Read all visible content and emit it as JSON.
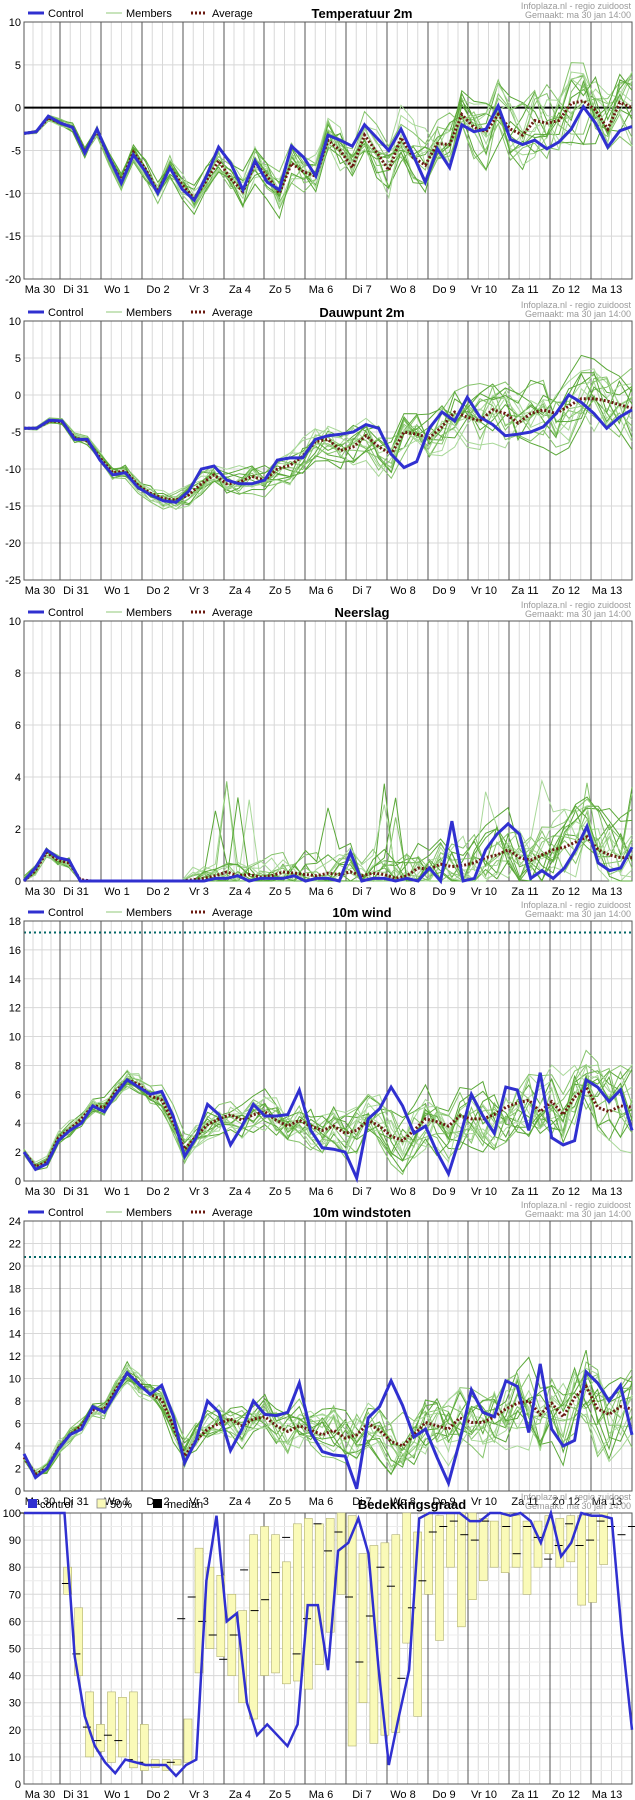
{
  "header": {
    "source": "Infoplaza.nl - regio zuidoost",
    "made": "Gemaakt: ma 30 jan 14:00"
  },
  "days": [
    "Ma 30",
    "Di 31",
    "Wo 1",
    "Do 2",
    "Vr 3",
    "Za 4",
    "Zo 5",
    "Ma 6",
    "Di 7",
    "Wo 8",
    "Do 9",
    "Vr 10",
    "Za 11",
    "Zo 12",
    "Ma 13"
  ],
  "legend": {
    "control": "Control",
    "members": "Members",
    "average": "Average"
  },
  "legend_cloud": {
    "control": "control",
    "p50": "50%",
    "median": "median"
  },
  "colors": {
    "control": "#3030d0",
    "members": "#60b040",
    "average": "#6a1a10",
    "band": "#fafab8",
    "threshold": "#006666"
  },
  "chart_data": [
    {
      "type": "line",
      "title": "Temperatuur 2m",
      "ylim": [
        -20,
        10
      ],
      "yticks": [
        -20,
        -15,
        -10,
        -5,
        0,
        5,
        10
      ],
      "zero_line": true,
      "series": [
        {
          "name": "Control",
          "values": [
            -3,
            -2.8,
            -1,
            -1.8,
            -2.3,
            -5.3,
            -2.5,
            -5.8,
            -8.8,
            -5.5,
            -7.5,
            -10,
            -7,
            -9.5,
            -10.8,
            -8,
            -4.6,
            -6.5,
            -9.6,
            -6.2,
            -8.7,
            -9.6,
            -4.5,
            -5.8,
            -8,
            -3.2,
            -3.8,
            -4.5,
            -2,
            -3.5,
            -5,
            -2.5,
            -5.5,
            -8.7,
            -4.8,
            -7,
            -2,
            -2.8,
            -2.5,
            0.2,
            -3.7,
            -4.3,
            -3.8,
            -4.8,
            -4,
            -2.5,
            0.1,
            -1.8,
            -4.6,
            -2.7,
            -2.2
          ]
        },
        {
          "name": "Average",
          "values": [
            -3,
            -2.8,
            -1.2,
            -1.8,
            -2.3,
            -5.2,
            -2.7,
            -5.8,
            -8.6,
            -5.2,
            -7.2,
            -9.8,
            -7,
            -9,
            -10.6,
            -8.5,
            -6.2,
            -8.3,
            -9.8,
            -6.5,
            -8,
            -10,
            -6.5,
            -7.5,
            -8,
            -3.8,
            -5,
            -7,
            -3.2,
            -5.2,
            -7.3,
            -3.5,
            -5.8,
            -6.7,
            -4.2,
            -4.3,
            -0.8,
            -2.3,
            -2.8,
            -0.8,
            -2.5,
            -3.2,
            -1.5,
            -1.8,
            -1.5,
            0.5,
            0.8,
            -0.3,
            -2.5,
            0.6,
            0
          ]
        }
      ]
    },
    {
      "type": "line",
      "title": "Dauwpunt 2m",
      "ylim": [
        -25,
        10
      ],
      "yticks": [
        -25,
        -20,
        -15,
        -10,
        -5,
        0,
        5,
        10
      ],
      "series": [
        {
          "name": "Control",
          "values": [
            -4.5,
            -4.5,
            -3.4,
            -3.5,
            -6,
            -6,
            -8.8,
            -10.8,
            -10.5,
            -12.5,
            -13.5,
            -14.3,
            -14.5,
            -13,
            -10,
            -9.6,
            -11.5,
            -12,
            -12,
            -11.5,
            -8.8,
            -8.5,
            -8.5,
            -6,
            -5.5,
            -5.3,
            -5,
            -4,
            -4.5,
            -8,
            -9.8,
            -9,
            -4.5,
            -2.3,
            -3.5,
            -0.3,
            -3,
            -4,
            -5.5,
            -5.3,
            -5,
            -4.3,
            -2.5,
            0,
            -1,
            -2.5,
            -4.5,
            -3,
            -2
          ]
        },
        {
          "name": "Average",
          "values": [
            -4.5,
            -4.5,
            -3.5,
            -3.6,
            -5.8,
            -6.2,
            -8.5,
            -10.5,
            -10.3,
            -12.2,
            -13.3,
            -14,
            -14.2,
            -13.5,
            -12,
            -10.8,
            -12,
            -11.8,
            -11,
            -11.5,
            -10,
            -9.5,
            -8.3,
            -6.3,
            -6,
            -7.5,
            -7,
            -5.5,
            -7,
            -8,
            -5,
            -5.3,
            -5.8,
            -4.3,
            -2.3,
            -3,
            -3.5,
            -2,
            -2.5,
            -3.8,
            -2.5,
            -2,
            -2.5,
            -1.5,
            -0.5,
            -0.5,
            -0.8,
            -1.3,
            -1.8
          ]
        }
      ]
    },
    {
      "type": "line",
      "title": "Neerslag",
      "ylim": [
        0,
        10
      ],
      "yticks": [
        0,
        2,
        4,
        6,
        8,
        10
      ],
      "series": [
        {
          "name": "Control",
          "values": [
            0,
            0.5,
            1.2,
            0.9,
            0.8,
            0,
            0,
            0,
            0,
            0,
            0,
            0,
            0,
            0,
            0,
            0,
            0,
            0.1,
            0.1,
            0.2,
            0,
            0.1,
            0.1,
            0.1,
            0.2,
            0,
            0.1,
            0.1,
            0,
            1.1,
            0,
            0.1,
            0.1,
            0,
            0.1,
            0,
            0.5,
            0,
            2.3,
            0,
            0.1,
            1.2,
            1.8,
            2.2,
            1.8,
            0.1,
            0.4,
            0.1,
            0.5,
            1.2,
            2.1,
            0.7,
            0.4,
            0.5,
            1.3
          ]
        },
        {
          "name": "Average",
          "values": [
            0,
            0.4,
            1.1,
            0.8,
            0.7,
            0.05,
            0,
            0,
            0,
            0,
            0,
            0,
            0,
            0,
            0,
            0.05,
            0.1,
            0.2,
            0.35,
            0.2,
            0.25,
            0.15,
            0.2,
            0.35,
            0.3,
            0.25,
            0.2,
            0.3,
            0.25,
            0.35,
            0.2,
            0.3,
            0.25,
            0.1,
            0.2,
            0.5,
            0.45,
            0.65,
            0.55,
            0.6,
            0.7,
            0.9,
            1,
            1.2,
            0.9,
            0.8,
            1,
            1.2,
            1.3,
            1.5,
            1.7,
            1.2,
            1,
            0.9,
            0.9
          ]
        }
      ]
    },
    {
      "type": "line",
      "title": "10m wind",
      "ylim": [
        0,
        18
      ],
      "yticks": [
        0,
        2,
        4,
        6,
        8,
        10,
        12,
        14,
        16,
        18
      ],
      "threshold": 17.2,
      "series": [
        {
          "name": "Control",
          "values": [
            2,
            0.8,
            1.2,
            2.8,
            3.5,
            4,
            5.2,
            4.8,
            6,
            7,
            6.5,
            6,
            6.2,
            4.5,
            1.7,
            3,
            5.3,
            4.6,
            2.5,
            3.8,
            5.3,
            4.5,
            4.5,
            4.6,
            6.3,
            3.5,
            2.3,
            2.2,
            2,
            0.2,
            4.3,
            5,
            6.5,
            5.2,
            3.3,
            3.8,
            2,
            0.5,
            3,
            6,
            4.5,
            3.3,
            6.5,
            6.3,
            3.5,
            7.5,
            3,
            2.5,
            2.8,
            7,
            6.5,
            5.5,
            6.3,
            3.5
          ]
        },
        {
          "name": "Average",
          "values": [
            2,
            1,
            1.3,
            3,
            3.6,
            4.3,
            5.2,
            5.1,
            6.2,
            7,
            6.7,
            5.9,
            5.6,
            4.1,
            2.2,
            3.1,
            3.9,
            4.3,
            4.6,
            4.2,
            4.6,
            4.8,
            4.2,
            3.8,
            4.2,
            3.8,
            3.5,
            3.8,
            3.3,
            3.5,
            4.2,
            3.8,
            3.1,
            2.8,
            3.5,
            4.3,
            4.1,
            3.8,
            4.5,
            4.3,
            4.3,
            4.6,
            5.1,
            5.4,
            5.6,
            4.8,
            5.5,
            4.6,
            5.8,
            6.5,
            5.1,
            4.8,
            5.2,
            5.1
          ]
        }
      ]
    },
    {
      "type": "line",
      "title": "10m windstoten",
      "ylim": [
        0,
        24
      ],
      "yticks": [
        0,
        2,
        4,
        6,
        8,
        10,
        12,
        14,
        16,
        18,
        20,
        22,
        24
      ],
      "threshold": 20.8,
      "series": [
        {
          "name": "Control",
          "values": [
            3.3,
            1.2,
            2,
            3.7,
            5,
            5.5,
            7.5,
            7,
            8.7,
            10.5,
            9.5,
            8.6,
            9.4,
            6.7,
            2.5,
            4.5,
            8,
            7,
            3.6,
            5.5,
            8,
            6.8,
            6.7,
            7,
            9.6,
            5.2,
            3.5,
            3.2,
            3.1,
            0.2,
            6.5,
            7.5,
            9.8,
            7.6,
            4.8,
            5.5,
            3,
            0.7,
            4.5,
            9,
            7,
            6.6,
            9.8,
            9.3,
            5.2,
            11.3,
            5.5,
            4,
            4.5,
            10.6,
            9.6,
            8,
            9.4,
            5
          ]
        },
        {
          "name": "Average",
          "values": [
            3,
            1.5,
            2,
            3.8,
            5,
            5.8,
            7.2,
            7.3,
            9,
            10.5,
            9.6,
            8.6,
            8.1,
            5.8,
            3.1,
            4.5,
            5.5,
            6,
            6.4,
            5.8,
            6.4,
            6.6,
            5.8,
            5.3,
            5.8,
            5.4,
            5,
            5.4,
            4.7,
            5,
            6,
            5.4,
            4.4,
            4,
            5,
            6.1,
            5.8,
            5.5,
            6.5,
            6.1,
            6.1,
            6.6,
            7.3,
            7.8,
            8,
            6.8,
            7.8,
            6.6,
            8.3,
            9.3,
            7.3,
            6.8,
            7.5,
            7.3
          ]
        }
      ]
    },
    {
      "type": "line",
      "title": "Bedekkingsgraad",
      "ylim": [
        0,
        100
      ],
      "yticks": [
        0,
        10,
        20,
        30,
        40,
        50,
        60,
        70,
        80,
        90,
        100
      ],
      "series": [
        {
          "name": "control",
          "values": [
            100,
            100,
            100,
            100,
            100,
            47,
            25,
            14,
            8,
            4,
            9,
            8,
            7,
            7,
            7,
            3,
            7,
            9,
            75,
            99,
            60,
            63,
            30,
            18,
            22,
            18,
            14,
            22,
            66,
            66,
            42,
            86,
            89,
            98,
            85,
            42,
            7,
            25,
            42,
            98,
            100,
            100,
            100,
            100,
            97,
            97,
            100,
            100,
            99,
            100,
            97,
            89,
            100,
            84,
            89,
            100,
            99,
            99,
            98,
            55,
            20
          ]
        },
        {
          "name": "median",
          "values": [
            100,
            100,
            100,
            100,
            74,
            48,
            21,
            16,
            18,
            16,
            9,
            8,
            7,
            7,
            8,
            61,
            69,
            60,
            55,
            46,
            55,
            79,
            64,
            68,
            78,
            91,
            48,
            61,
            96,
            86,
            93,
            69,
            45,
            62,
            80,
            73,
            39,
            65,
            75,
            93,
            95,
            97,
            92,
            90,
            97,
            100,
            95,
            85,
            95,
            91,
            83,
            88,
            96,
            88,
            90,
            97,
            95,
            92,
            95
          ]
        }
      ],
      "band": [
        {
          "lo": 70,
          "hi": 80
        },
        {
          "lo": 40,
          "hi": 65
        },
        {
          "lo": 10,
          "hi": 34
        },
        {
          "lo": 12,
          "hi": 22
        },
        {
          "lo": 8,
          "hi": 34
        },
        {
          "lo": 10,
          "hi": 32
        },
        {
          "lo": 6,
          "hi": 34
        },
        {
          "lo": 5,
          "hi": 22
        },
        {
          "lo": 6,
          "hi": 9
        },
        {
          "lo": 5,
          "hi": 9
        },
        {
          "lo": 7,
          "hi": 9
        },
        {
          "lo": 8,
          "hi": 24
        },
        {
          "lo": 41,
          "hi": 87
        },
        {
          "lo": 50,
          "hi": 80
        },
        {
          "lo": 47,
          "hi": 77
        },
        {
          "lo": 40,
          "hi": 70
        },
        {
          "lo": 30,
          "hi": 64
        },
        {
          "lo": 24,
          "hi": 92
        },
        {
          "lo": 40,
          "hi": 95
        },
        {
          "lo": 41,
          "hi": 92
        },
        {
          "lo": 37,
          "hi": 82
        },
        {
          "lo": 38,
          "hi": 96
        },
        {
          "lo": 35,
          "hi": 98
        },
        {
          "lo": 44,
          "hi": 96
        },
        {
          "lo": 56,
          "hi": 98
        },
        {
          "lo": 70,
          "hi": 100
        },
        {
          "lo": 14,
          "hi": 99
        },
        {
          "lo": 30,
          "hi": 85
        },
        {
          "lo": 15,
          "hi": 88
        },
        {
          "lo": 18,
          "hi": 89
        },
        {
          "lo": 19,
          "hi": 92
        },
        {
          "lo": 52,
          "hi": 100
        },
        {
          "lo": 25,
          "hi": 93
        },
        {
          "lo": 70,
          "hi": 100
        },
        {
          "lo": 53,
          "hi": 99
        },
        {
          "lo": 80,
          "hi": 100
        },
        {
          "lo": 58,
          "hi": 100
        },
        {
          "lo": 68,
          "hi": 100
        },
        {
          "lo": 75,
          "hi": 98
        },
        {
          "lo": 80,
          "hi": 97
        },
        {
          "lo": 78,
          "hi": 100
        },
        {
          "lo": 80,
          "hi": 99
        },
        {
          "lo": 70,
          "hi": 97
        },
        {
          "lo": 80,
          "hi": 97
        },
        {
          "lo": 85,
          "hi": 99
        },
        {
          "lo": 80,
          "hi": 98
        },
        {
          "lo": 82,
          "hi": 99
        },
        {
          "lo": 66,
          "hi": 99
        },
        {
          "lo": 67,
          "hi": 99
        },
        {
          "lo": 81,
          "hi": 100
        }
      ]
    }
  ]
}
